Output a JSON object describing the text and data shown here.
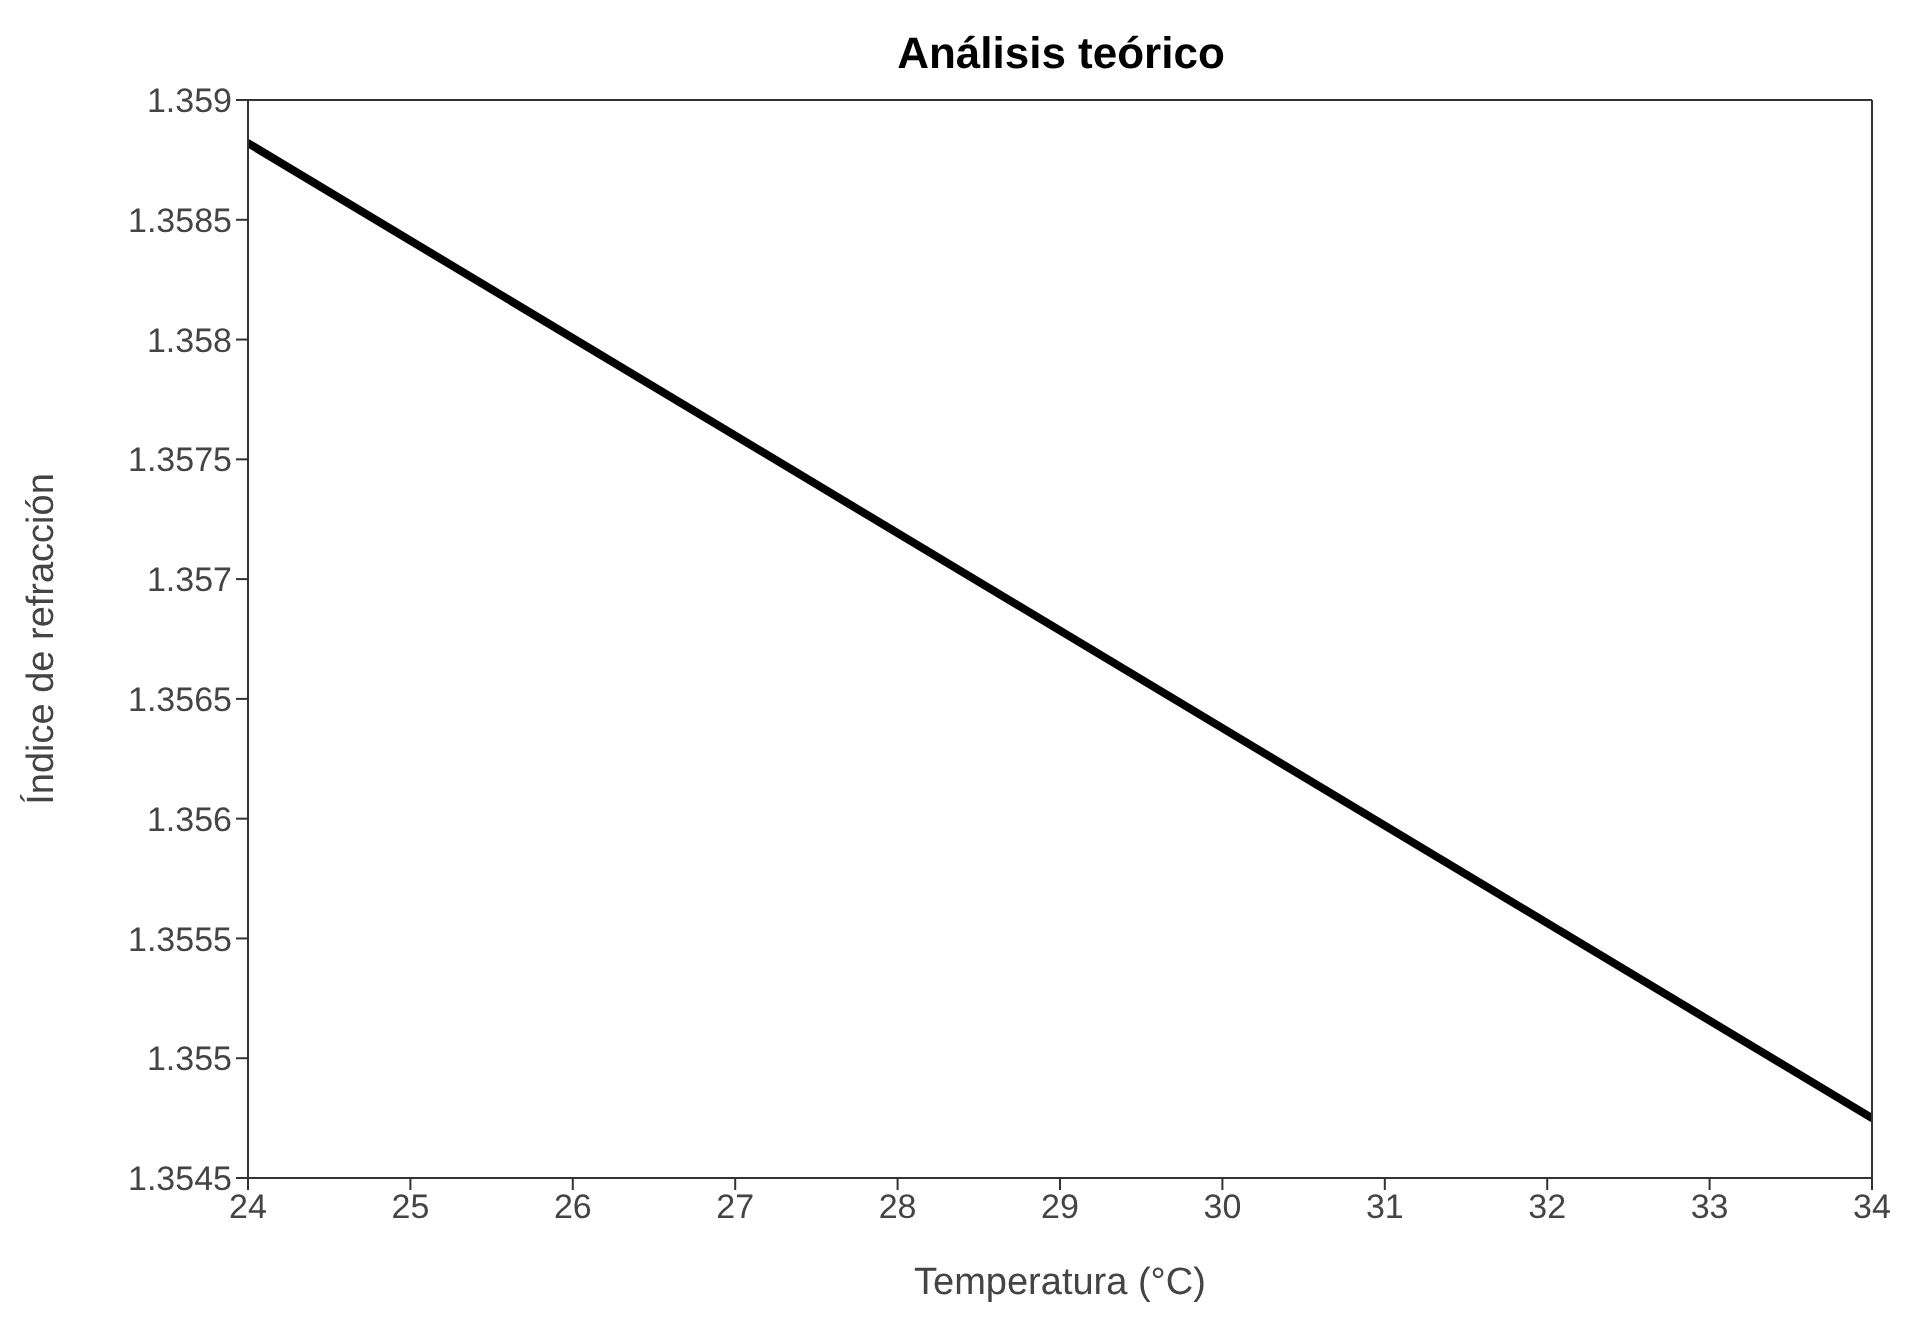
{
  "chart_data": {
    "type": "line",
    "title": "Análisis teórico",
    "xlabel": "Temperatura (°C)",
    "ylabel": "Índice de refracción",
    "x": [
      24,
      34
    ],
    "series": [
      {
        "color": "#000000",
        "values": [
          1.35882,
          1.35475
        ]
      }
    ],
    "xlim": [
      24,
      34
    ],
    "xticks": [
      24,
      25,
      26,
      27,
      28,
      29,
      30,
      31,
      32,
      33,
      34
    ],
    "ylim": [
      1.3545,
      1.359
    ],
    "yticks": [
      1.3545,
      1.355,
      1.3555,
      1.356,
      1.3565,
      1.357,
      1.3575,
      1.358,
      1.3585,
      1.359
    ],
    "legend": false,
    "marker": "none",
    "line_style": "solid"
  }
}
